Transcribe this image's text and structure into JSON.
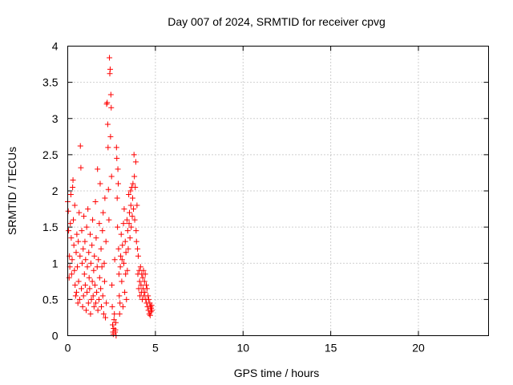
{
  "chart_data": {
    "type": "scatter",
    "title": "Day 007 of 2024, SRMTID for receiver cpvg",
    "xlabel": "GPS time / hours",
    "ylabel": "SRMTID / TECUs",
    "xlim": [
      0,
      24
    ],
    "ylim": [
      0,
      4
    ],
    "xticks": [
      0,
      5,
      10,
      15,
      20
    ],
    "xtick_labels": [
      "0",
      "5",
      "10",
      "15",
      "20"
    ],
    "yticks": [
      0,
      0.5,
      1,
      1.5,
      2,
      2.5,
      3,
      3.5,
      4
    ],
    "ytick_labels": [
      "0",
      "0.5",
      "1",
      "1.5",
      "2",
      "2.5",
      "3",
      "3.5",
      "4"
    ],
    "grid": true,
    "marker": "+",
    "color": "#ff0000",
    "series": [
      {
        "name": "SRMTID",
        "points": [
          [
            0.0,
            1.85
          ],
          [
            0.03,
            1.72
          ],
          [
            0.05,
            1.45
          ],
          [
            0.08,
            0.8
          ],
          [
            0.1,
            1.1
          ],
          [
            0.12,
            0.95
          ],
          [
            0.15,
            1.55
          ],
          [
            0.18,
            1.95
          ],
          [
            0.2,
            1.35
          ],
          [
            0.22,
            0.85
          ],
          [
            0.25,
            1.05
          ],
          [
            0.28,
            2.05
          ],
          [
            0.3,
            2.15
          ],
          [
            0.32,
            1.6
          ],
          [
            0.35,
            1.25
          ],
          [
            0.38,
            0.9
          ],
          [
            0.4,
            1.8
          ],
          [
            0.42,
            0.7
          ],
          [
            0.45,
            0.55
          ],
          [
            0.48,
            1.15
          ],
          [
            0.5,
            0.6
          ],
          [
            0.52,
            1.4
          ],
          [
            0.55,
            0.95
          ],
          [
            0.58,
            0.45
          ],
          [
            0.6,
            1.3
          ],
          [
            0.62,
            0.75
          ],
          [
            0.65,
            1.7
          ],
          [
            0.68,
            0.5
          ],
          [
            0.7,
            1.1
          ],
          [
            0.72,
            2.62
          ],
          [
            0.75,
            2.32
          ],
          [
            0.78,
            0.65
          ],
          [
            0.8,
            1.45
          ],
          [
            0.82,
            1.0
          ],
          [
            0.85,
            0.4
          ],
          [
            0.88,
            1.2
          ],
          [
            0.9,
            0.55
          ],
          [
            0.92,
            1.65
          ],
          [
            0.95,
            0.85
          ],
          [
            0.98,
            1.3
          ],
          [
            1.0,
            0.7
          ],
          [
            1.02,
            1.05
          ],
          [
            1.05,
            0.35
          ],
          [
            1.08,
            1.5
          ],
          [
            1.1,
            0.6
          ],
          [
            1.12,
            0.95
          ],
          [
            1.15,
            1.75
          ],
          [
            1.18,
            0.45
          ],
          [
            1.2,
            1.15
          ],
          [
            1.22,
            0.8
          ],
          [
            1.25,
            0.65
          ],
          [
            1.28,
            1.4
          ],
          [
            1.3,
            0.3
          ],
          [
            1.32,
            1.0
          ],
          [
            1.35,
            0.5
          ],
          [
            1.38,
            1.25
          ],
          [
            1.4,
            0.75
          ],
          [
            1.42,
            1.6
          ],
          [
            1.45,
            0.55
          ],
          [
            1.48,
            0.9
          ],
          [
            1.5,
            0.4
          ],
          [
            1.52,
            1.1
          ],
          [
            1.55,
            0.7
          ],
          [
            1.58,
            1.85
          ],
          [
            1.6,
            0.45
          ],
          [
            1.62,
            1.35
          ],
          [
            1.65,
            0.6
          ],
          [
            1.68,
            0.95
          ],
          [
            1.7,
            2.3
          ],
          [
            1.72,
            0.35
          ],
          [
            1.75,
            1.05
          ],
          [
            1.78,
            0.5
          ],
          [
            1.8,
            1.55
          ],
          [
            1.82,
            0.8
          ],
          [
            1.85,
            2.1
          ],
          [
            1.88,
            0.65
          ],
          [
            1.9,
            1.2
          ],
          [
            1.92,
            0.4
          ],
          [
            1.95,
            0.95
          ],
          [
            1.98,
            1.45
          ],
          [
            2.0,
            0.55
          ],
          [
            2.02,
            1.7
          ],
          [
            2.05,
            0.3
          ],
          [
            2.08,
            1.0
          ],
          [
            2.1,
            0.75
          ],
          [
            2.12,
            1.9
          ],
          [
            2.15,
            0.25
          ],
          [
            2.18,
            1.3
          ],
          [
            2.2,
            0.45
          ],
          [
            2.22,
            3.2
          ],
          [
            2.25,
            3.22
          ],
          [
            2.28,
            2.92
          ],
          [
            2.3,
            2.6
          ],
          [
            2.32,
            2.02
          ],
          [
            2.35,
            1.6
          ],
          [
            2.38,
            3.84
          ],
          [
            2.4,
            3.62
          ],
          [
            2.42,
            3.68
          ],
          [
            2.44,
            2.75
          ],
          [
            2.46,
            3.33
          ],
          [
            2.48,
            3.15
          ],
          [
            2.5,
            2.2
          ],
          [
            2.52,
            0.7
          ],
          [
            2.54,
            0.4
          ],
          [
            2.56,
            0.15
          ],
          [
            2.58,
            0.05
          ],
          [
            2.6,
            0.02
          ],
          [
            2.62,
            0.1
          ],
          [
            2.64,
            0.22
          ],
          [
            2.66,
            0.3
          ],
          [
            2.68,
            1.05
          ],
          [
            2.7,
            0.05
          ],
          [
            2.72,
            0.08
          ],
          [
            2.74,
            0.18
          ],
          [
            2.76,
            0.0
          ],
          [
            2.78,
            2.6
          ],
          [
            2.8,
            2.45
          ],
          [
            2.82,
            1.9
          ],
          [
            2.84,
            1.5
          ],
          [
            2.86,
            2.3
          ],
          [
            2.88,
            2.1
          ],
          [
            2.9,
            1.2
          ],
          [
            2.92,
            0.85
          ],
          [
            2.94,
            0.55
          ],
          [
            2.96,
            0.3
          ],
          [
            2.98,
            0.45
          ],
          [
            3.0,
            0.95
          ],
          [
            3.02,
            1.1
          ],
          [
            3.05,
            1.4
          ],
          [
            3.08,
            0.75
          ],
          [
            3.1,
            1.05
          ],
          [
            3.12,
            1.25
          ],
          [
            3.15,
            0.4
          ],
          [
            3.18,
            1.55
          ],
          [
            3.2,
            1.0
          ],
          [
            3.22,
            1.75
          ],
          [
            3.25,
            0.6
          ],
          [
            3.28,
            1.3
          ],
          [
            3.3,
            0.85
          ],
          [
            3.32,
            1.15
          ],
          [
            3.35,
            0.5
          ],
          [
            3.38,
            1.6
          ],
          [
            3.4,
            0.9
          ],
          [
            3.42,
            1.45
          ],
          [
            3.45,
            1.2
          ],
          [
            3.48,
            1.95
          ],
          [
            3.5,
            1.55
          ],
          [
            3.52,
            1.7
          ],
          [
            3.55,
            1.35
          ],
          [
            3.58,
            2.0
          ],
          [
            3.6,
            1.8
          ],
          [
            3.62,
            1.5
          ],
          [
            3.65,
            2.05
          ],
          [
            3.68,
            1.65
          ],
          [
            3.7,
            1.9
          ],
          [
            3.72,
            2.1
          ],
          [
            3.75,
            1.75
          ],
          [
            3.78,
            2.5
          ],
          [
            3.8,
            2.2
          ],
          [
            3.82,
            1.6
          ],
          [
            3.85,
            2.05
          ],
          [
            3.88,
            2.4
          ],
          [
            3.9,
            1.45
          ],
          [
            3.92,
            1.3
          ],
          [
            3.95,
            1.8
          ],
          [
            3.98,
            1.2
          ],
          [
            4.0,
            0.85
          ],
          [
            4.02,
            1.1
          ],
          [
            4.05,
            0.65
          ],
          [
            4.08,
            0.9
          ],
          [
            4.1,
            0.75
          ],
          [
            4.12,
            0.55
          ],
          [
            4.15,
            0.95
          ],
          [
            4.18,
            0.7
          ],
          [
            4.2,
            0.6
          ],
          [
            4.22,
            0.85
          ],
          [
            4.25,
            0.5
          ],
          [
            4.28,
            0.8
          ],
          [
            4.3,
            0.65
          ],
          [
            4.32,
            0.9
          ],
          [
            4.35,
            0.55
          ],
          [
            4.38,
            0.75
          ],
          [
            4.4,
            0.6
          ],
          [
            4.42,
            0.85
          ],
          [
            4.45,
            0.5
          ],
          [
            4.48,
            0.7
          ],
          [
            4.5,
            0.45
          ],
          [
            4.52,
            0.65
          ],
          [
            4.55,
            0.4
          ],
          [
            4.58,
            0.55
          ],
          [
            4.6,
            0.35
          ],
          [
            4.62,
            0.5
          ],
          [
            4.65,
            0.3
          ],
          [
            4.68,
            0.45
          ],
          [
            4.7,
            0.28
          ],
          [
            4.72,
            0.4
          ],
          [
            4.74,
            0.33
          ],
          [
            4.76,
            0.38
          ],
          [
            4.78,
            0.42
          ],
          [
            4.8,
            0.35
          ]
        ]
      }
    ]
  }
}
